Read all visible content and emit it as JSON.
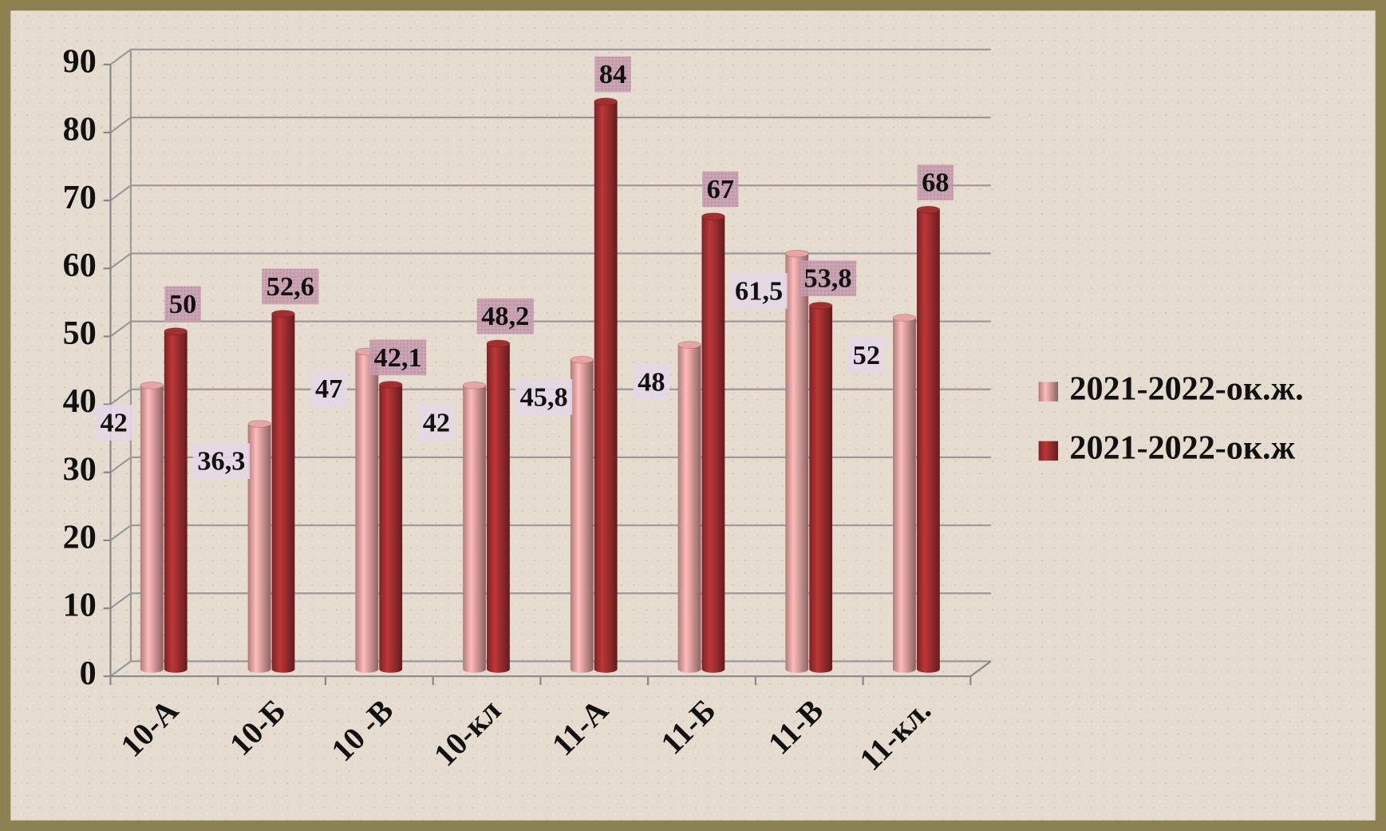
{
  "chart_data": {
    "type": "bar",
    "categories": [
      "10-А",
      "10-Б",
      "10 -В",
      "10-кл",
      "11-А",
      "11-Б",
      "11-В",
      "11-кл."
    ],
    "series": [
      {
        "name": "2021-2022-ок.ж.",
        "color": "#e9a3a3",
        "values": [
          42,
          36.3,
          47,
          42,
          45.8,
          48,
          61.5,
          52
        ],
        "value_labels": [
          "42",
          "36,3",
          "47",
          "42",
          "45,8",
          "48",
          "61,5",
          "52"
        ]
      },
      {
        "name": "2021-2022-ок.ж",
        "color": "#a52f30",
        "values": [
          50,
          52.6,
          42.1,
          48.2,
          84,
          67,
          53.8,
          68
        ],
        "value_labels": [
          "50",
          "52,6",
          "42,1",
          "48,2",
          "84",
          "67",
          "53,8",
          "68"
        ]
      }
    ],
    "ylim": [
      0,
      90
    ],
    "yticks": [
      0,
      10,
      20,
      30,
      40,
      50,
      60,
      70,
      80,
      90
    ],
    "grid": true,
    "legend": "right"
  }
}
